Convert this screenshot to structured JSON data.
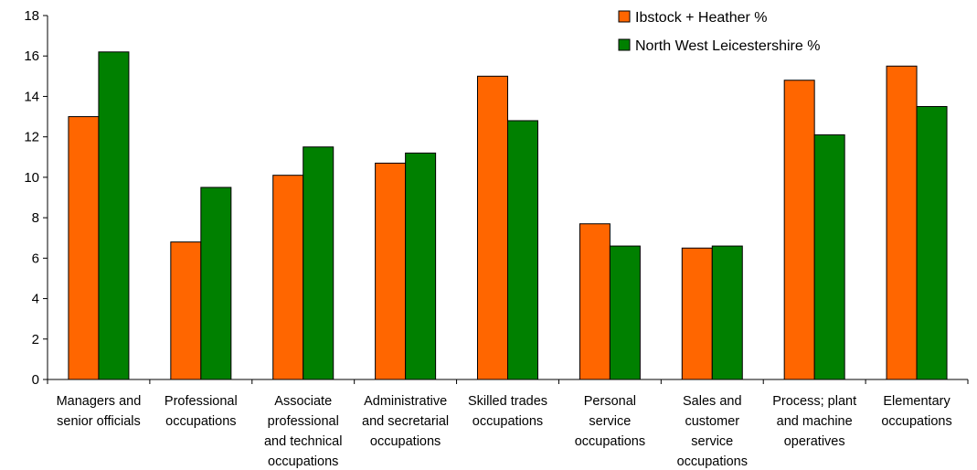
{
  "chart_data": {
    "type": "bar",
    "categories": [
      [
        "Managers and",
        "senior officials"
      ],
      [
        "Professional",
        "occupations"
      ],
      [
        "Associate",
        "professional",
        "and technical",
        "occupations"
      ],
      [
        "Administrative",
        "and secretarial",
        "occupations"
      ],
      [
        "Skilled trades",
        "occupations"
      ],
      [
        "Personal",
        "service",
        "occupations"
      ],
      [
        "Sales and",
        "customer",
        "service",
        "occupations"
      ],
      [
        "Process; plant",
        "and machine",
        "operatives"
      ],
      [
        "Elementary",
        "occupations"
      ]
    ],
    "series": [
      {
        "name": "Ibstock + Heather %",
        "color": "#ff6600",
        "values": [
          13.0,
          6.8,
          10.1,
          10.7,
          15.0,
          7.7,
          6.5,
          14.8,
          15.5
        ]
      },
      {
        "name": "North West Leicestershire %",
        "color": "#008000",
        "values": [
          16.2,
          9.5,
          11.5,
          11.2,
          12.8,
          6.6,
          6.6,
          12.1,
          13.5
        ]
      }
    ],
    "yticks": [
      0,
      2,
      4,
      6,
      8,
      10,
      12,
      14,
      16,
      18
    ],
    "ylim": [
      0,
      18
    ],
    "grid": false,
    "legend_position": "top-right",
    "title": "",
    "xlabel": "",
    "ylabel": ""
  }
}
